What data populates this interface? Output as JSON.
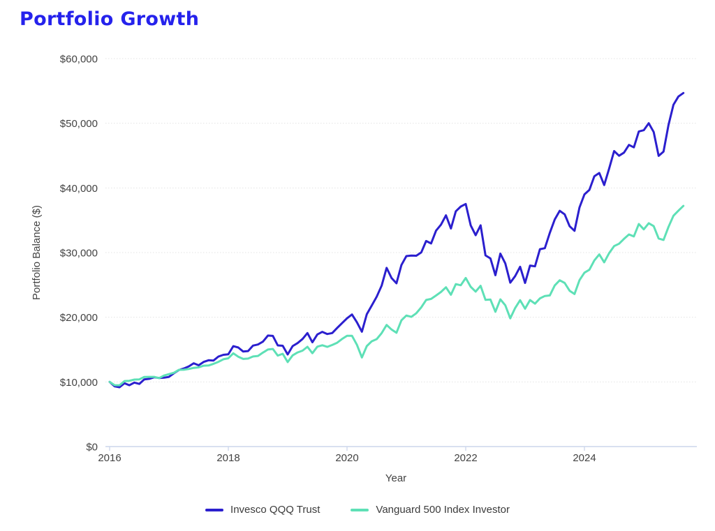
{
  "title": "Portfolio Growth",
  "title_color": "#2522ec",
  "axis_text_color": "#424242",
  "gridline_color": "#e3e3e3",
  "baseline_color": "#ccd6ec",
  "legend": {
    "items": [
      {
        "label": "Invesco QQQ Trust"
      },
      {
        "label": "Vanguard 500 Index Investor"
      }
    ]
  },
  "chart_data": {
    "type": "line",
    "title": "Portfolio Growth",
    "xlabel": "Year",
    "ylabel": "Portfolio Balance ($)",
    "ylim": [
      0,
      60000
    ],
    "xlim": [
      2016.0,
      2025.9
    ],
    "grid": "horizontal-dotted",
    "legend_position": "bottom",
    "x_start": 2016.0,
    "x_interval_months": 1,
    "y_ticks": [
      {
        "value": 0,
        "label": "$0"
      },
      {
        "value": 10000,
        "label": "$10,000"
      },
      {
        "value": 20000,
        "label": "$20,000"
      },
      {
        "value": 30000,
        "label": "$30,000"
      },
      {
        "value": 40000,
        "label": "$40,000"
      },
      {
        "value": 50000,
        "label": "$50,000"
      },
      {
        "value": 60000,
        "label": "$60,000"
      }
    ],
    "x_ticks": [
      {
        "value": 2016,
        "label": "2016"
      },
      {
        "value": 2018,
        "label": "2018"
      },
      {
        "value": 2020,
        "label": "2020"
      },
      {
        "value": 2022,
        "label": "2022"
      },
      {
        "value": 2024,
        "label": "2024"
      }
    ],
    "series": [
      {
        "name": "Invesco QQQ Trust",
        "color": "#2b1fce",
        "values": [
          10000,
          9320,
          9171,
          9795,
          9482,
          9899,
          9691,
          10379,
          10483,
          10714,
          10607,
          10649,
          10777,
          11337,
          11836,
          12073,
          12399,
          12882,
          12573,
          13089,
          13351,
          13311,
          13923,
          14187,
          14272,
          15528,
          15326,
          14698,
          14771,
          15613,
          15785,
          16227,
          17168,
          17116,
          15644,
          15597,
          14240,
          15536,
          16002,
          16642,
          17557,
          16117,
          17342,
          17741,
          17404,
          17561,
          18334,
          19086,
          19830,
          20425,
          19220,
          17759,
          20459,
          21809,
          23183,
          24899,
          27638,
          26063,
          25255,
          28083,
          29459,
          29547,
          29518,
          30020,
          31791,
          31409,
          33388,
          34323,
          35765,
          33726,
          36390,
          37118,
          37526,
          34224,
          32684,
          34220,
          29566,
          29093,
          26504,
          29843,
          28321,
          25347,
          26361,
          27811,
          25308,
          27991,
          27879,
          30527,
          30680,
          33042,
          35124,
          36459,
          35912,
          34080,
          33365,
          36968,
          39001,
          39703,
          41808,
          42310,
          40448,
          42996,
          45705,
          44974,
          45469,
          46651,
          46278,
          48731,
          48926,
          50002,
          48652,
          44954,
          45628,
          49735,
          52868,
          54137,
          54678
        ]
      },
      {
        "name": "Vanguard 500 Index Investor",
        "color": "#5ee0b6",
        "values": [
          10000,
          9500,
          9490,
          10135,
          10176,
          10359,
          10390,
          10774,
          10785,
          10785,
          10591,
          10983,
          11203,
          11416,
          11873,
          11885,
          12004,
          12172,
          12245,
          12502,
          12540,
          12803,
          13097,
          13503,
          13652,
          14430,
          13896,
          13549,
          13603,
          13929,
          14013,
          14531,
          15011,
          15101,
          14074,
          14356,
          13064,
          14109,
          14560,
          14837,
          15430,
          14443,
          15454,
          15670,
          15419,
          15712,
          16058,
          16636,
          17135,
          17135,
          15730,
          13779,
          15543,
          16289,
          16615,
          17545,
          18808,
          18093,
          17605,
          19524,
          20266,
          20063,
          20625,
          21533,
          22674,
          22833,
          23358,
          23919,
          24636,
          23478,
          25122,
          24946,
          26069,
          24713,
          23972,
          24859,
          22696,
          22741,
          20854,
          22773,
          21839,
          19830,
          21436,
          22636,
          21323,
          22666,
          22100,
          22917,
          23284,
          23377,
          24920,
          25718,
          25306,
          24092,
          23586,
          25732,
          26890,
          27347,
          28796,
          29718,
          28499,
          29924,
          31001,
          31373,
          32126,
          32801,
          32506,
          34424,
          33598,
          34539,
          34090,
          32181,
          31956,
          33969,
          35701,
          36486,
          37216
        ]
      }
    ]
  }
}
